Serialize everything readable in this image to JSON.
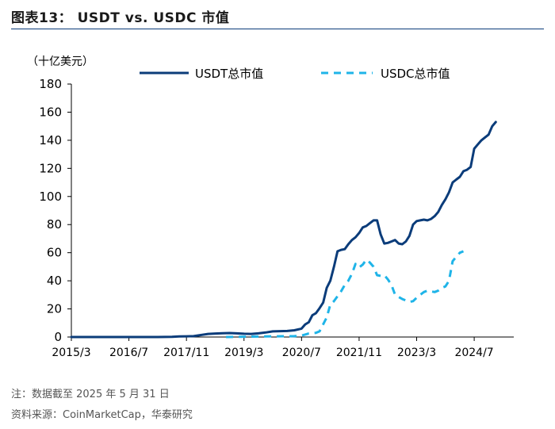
{
  "header": {
    "title": "图表13：  USDT vs. USDC 市值"
  },
  "footer": {
    "note": "注：数据截至 2025 年 5 月 31 日",
    "source": "资料来源：CoinMarketCap，华泰研究"
  },
  "colors": {
    "usdt": "#0b3c7a",
    "usdc": "#1fb4e8",
    "axis": "#000000"
  },
  "chart_data": {
    "type": "line",
    "title": "USDT vs. USDC 市值",
    "ylabel": "（十亿美元）",
    "xlabel": "",
    "ylim": [
      0,
      180
    ],
    "yticks": [
      "0",
      "20",
      "40",
      "60",
      "80",
      "100",
      "120",
      "140",
      "160",
      "180"
    ],
    "xlim_months": [
      0,
      123
    ],
    "xticks": [
      {
        "label": "2015/3",
        "month": 0
      },
      {
        "label": "2016/7",
        "month": 16
      },
      {
        "label": "2017/11",
        "month": 32
      },
      {
        "label": "2019/3",
        "month": 48
      },
      {
        "label": "2020/7",
        "month": 64
      },
      {
        "label": "2021/11",
        "month": 80
      },
      {
        "label": "2023/3",
        "month": 96
      },
      {
        "label": "2024/7",
        "month": 112
      }
    ],
    "legend": "top",
    "series": [
      {
        "name": "USDT总市值",
        "style": "solid",
        "points": [
          [
            0,
            0.0
          ],
          [
            6,
            0.0
          ],
          [
            12,
            0.0
          ],
          [
            18,
            0.0
          ],
          [
            24,
            0.0
          ],
          [
            28,
            0.1
          ],
          [
            30,
            0.4
          ],
          [
            32,
            0.5
          ],
          [
            34,
            0.6
          ],
          [
            36,
            1.4
          ],
          [
            38,
            2.2
          ],
          [
            40,
            2.5
          ],
          [
            42,
            2.7
          ],
          [
            44,
            2.8
          ],
          [
            46,
            2.6
          ],
          [
            48,
            2.3
          ],
          [
            50,
            2.2
          ],
          [
            52,
            2.6
          ],
          [
            54,
            3.2
          ],
          [
            56,
            4.0
          ],
          [
            58,
            4.2
          ],
          [
            60,
            4.3
          ],
          [
            62,
            4.8
          ],
          [
            64,
            6.0
          ],
          [
            65,
            9.0
          ],
          [
            66,
            10.5
          ],
          [
            67,
            15.5
          ],
          [
            68,
            17.0
          ],
          [
            69,
            20.5
          ],
          [
            70,
            24.5
          ],
          [
            71,
            35.0
          ],
          [
            72,
            40.0
          ],
          [
            73,
            50.0
          ],
          [
            74,
            61.0
          ],
          [
            75,
            62.0
          ],
          [
            76,
            62.5
          ],
          [
            77,
            66.0
          ],
          [
            78,
            69.0
          ],
          [
            79,
            71.0
          ],
          [
            80,
            74.0
          ],
          [
            81,
            78.0
          ],
          [
            82,
            79.0
          ],
          [
            83,
            81.0
          ],
          [
            84,
            83.0
          ],
          [
            85,
            83.0
          ],
          [
            86,
            73.0
          ],
          [
            87,
            66.5
          ],
          [
            88,
            67.0
          ],
          [
            89,
            68.0
          ],
          [
            90,
            69.0
          ],
          [
            91,
            66.5
          ],
          [
            92,
            66.0
          ],
          [
            93,
            68.0
          ],
          [
            94,
            72.0
          ],
          [
            95,
            80.0
          ],
          [
            96,
            82.5
          ],
          [
            97,
            83.0
          ],
          [
            98,
            83.5
          ],
          [
            99,
            83.0
          ],
          [
            100,
            84.0
          ],
          [
            101,
            86.0
          ],
          [
            102,
            89.0
          ],
          [
            103,
            94.0
          ],
          [
            104,
            98.0
          ],
          [
            105,
            103.0
          ],
          [
            106,
            110.0
          ],
          [
            107,
            112.0
          ],
          [
            108,
            114.0
          ],
          [
            109,
            118.0
          ],
          [
            110,
            119.0
          ],
          [
            111,
            121.0
          ],
          [
            112,
            134.0
          ],
          [
            113,
            137.0
          ],
          [
            114,
            140.0
          ],
          [
            115,
            142.0
          ],
          [
            116,
            144.0
          ],
          [
            117,
            150.0
          ],
          [
            118,
            153.0
          ]
        ]
      },
      {
        "name": "USDC总市值",
        "style": "dashed",
        "points": [
          [
            43,
            0.0
          ],
          [
            50,
            0.3
          ],
          [
            56,
            0.5
          ],
          [
            62,
            0.6
          ],
          [
            64,
            1.0
          ],
          [
            66,
            2.5
          ],
          [
            68,
            3.0
          ],
          [
            69,
            4.0
          ],
          [
            70,
            9.0
          ],
          [
            71,
            14.0
          ],
          [
            72,
            23.0
          ],
          [
            73,
            25.5
          ],
          [
            74,
            29.0
          ],
          [
            75,
            32.5
          ],
          [
            76,
            37.0
          ],
          [
            77,
            40.0
          ],
          [
            78,
            45.0
          ],
          [
            79,
            52.0
          ],
          [
            80,
            49.5
          ],
          [
            81,
            51.5
          ],
          [
            82,
            55.0
          ],
          [
            83,
            53.0
          ],
          [
            84,
            50.0
          ],
          [
            85,
            44.0
          ],
          [
            86,
            43.5
          ],
          [
            87,
            44.0
          ],
          [
            88,
            41.0
          ],
          [
            89,
            37.0
          ],
          [
            90,
            30.0
          ],
          [
            91,
            28.5
          ],
          [
            92,
            27.0
          ],
          [
            93,
            26.0
          ],
          [
            94,
            25.0
          ],
          [
            95,
            25.5
          ],
          [
            96,
            28.0
          ],
          [
            97,
            30.0
          ],
          [
            98,
            32.0
          ],
          [
            99,
            33.0
          ],
          [
            100,
            32.5
          ],
          [
            101,
            32.0
          ],
          [
            102,
            33.0
          ],
          [
            103,
            35.0
          ],
          [
            104,
            36.0
          ],
          [
            105,
            40.0
          ],
          [
            106,
            54.0
          ],
          [
            107,
            57.0
          ],
          [
            108,
            60.0
          ],
          [
            109,
            61.0
          ]
        ]
      }
    ]
  }
}
